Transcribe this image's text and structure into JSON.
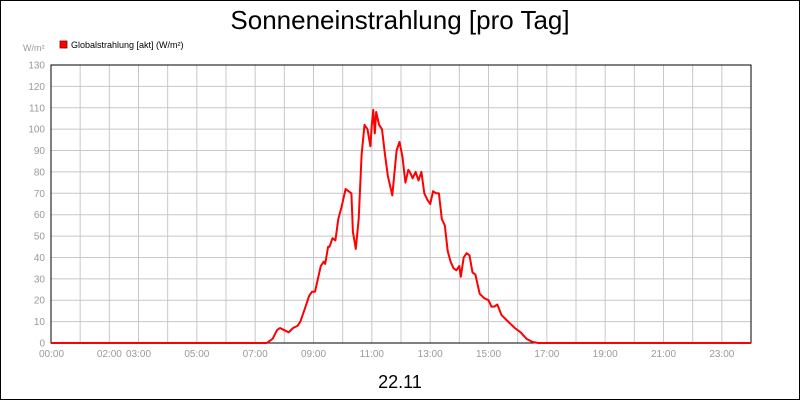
{
  "chart_data": {
    "type": "line",
    "title": "Sonneneinstrahlung [pro Tag]",
    "xlabel": "22.11",
    "ylabel": "W/m²",
    "ylim": [
      0,
      130
    ],
    "yticks": [
      0,
      10,
      20,
      30,
      40,
      50,
      60,
      70,
      80,
      90,
      100,
      110,
      120,
      130
    ],
    "xlim": [
      0,
      24
    ],
    "xticks": [
      {
        "h": 0,
        "label": "00:00"
      },
      {
        "h": 2,
        "label": "02:00"
      },
      {
        "h": 3,
        "label": "03:00"
      },
      {
        "h": 5,
        "label": "05:00"
      },
      {
        "h": 7,
        "label": "07:00"
      },
      {
        "h": 9,
        "label": "09:00"
      },
      {
        "h": 11,
        "label": "11:00"
      },
      {
        "h": 13,
        "label": "13:00"
      },
      {
        "h": 15,
        "label": "15:00"
      },
      {
        "h": 17,
        "label": "17:00"
      },
      {
        "h": 19,
        "label": "19:00"
      },
      {
        "h": 21,
        "label": "21:00"
      },
      {
        "h": 23,
        "label": "23:00"
      }
    ],
    "grid": true,
    "legend_position": "top-left",
    "series": [
      {
        "name": "Globalstrahlung [akt] (W/m²)",
        "color": "#ff0000",
        "x": [
          0,
          7.4,
          7.6,
          7.75,
          7.85,
          8.0,
          8.15,
          8.3,
          8.45,
          8.55,
          8.7,
          8.85,
          8.95,
          9.05,
          9.15,
          9.25,
          9.35,
          9.4,
          9.5,
          9.55,
          9.65,
          9.75,
          9.85,
          9.95,
          10.0,
          10.1,
          10.2,
          10.3,
          10.35,
          10.45,
          10.55,
          10.65,
          10.75,
          10.85,
          10.95,
          11.0,
          11.05,
          11.1,
          11.15,
          11.25,
          11.35,
          11.45,
          11.55,
          11.7,
          11.85,
          11.95,
          12.05,
          12.15,
          12.25,
          12.3,
          12.4,
          12.5,
          12.6,
          12.7,
          12.8,
          12.9,
          13.0,
          13.1,
          13.2,
          13.3,
          13.4,
          13.5,
          13.6,
          13.7,
          13.8,
          13.9,
          14.0,
          14.05,
          14.15,
          14.25,
          14.35,
          14.45,
          14.55,
          14.7,
          14.85,
          15.0,
          15.1,
          15.2,
          15.3,
          15.45,
          15.6,
          15.75,
          15.9,
          16.1,
          16.3,
          16.5,
          16.7,
          16.85,
          17.0,
          24.0
        ],
        "values": [
          0,
          0,
          2,
          6,
          7,
          6,
          5,
          7,
          8,
          10,
          16,
          22,
          24,
          24,
          30,
          36,
          38,
          37,
          45,
          45,
          49,
          48,
          58,
          63,
          66,
          72,
          71,
          70,
          52,
          44,
          58,
          88,
          102,
          100,
          92,
          102,
          109,
          98,
          108,
          102,
          100,
          88,
          78,
          69,
          90,
          94,
          87,
          75,
          81,
          80,
          77,
          80,
          76,
          80,
          70,
          67,
          65,
          71,
          70,
          70,
          58,
          55,
          43,
          38,
          35,
          34,
          36,
          31,
          40,
          42,
          41,
          33,
          32,
          23,
          21,
          20,
          17,
          17,
          18,
          13,
          11,
          9,
          7,
          5,
          2,
          0.5,
          0,
          0,
          0,
          0
        ]
      }
    ]
  }
}
